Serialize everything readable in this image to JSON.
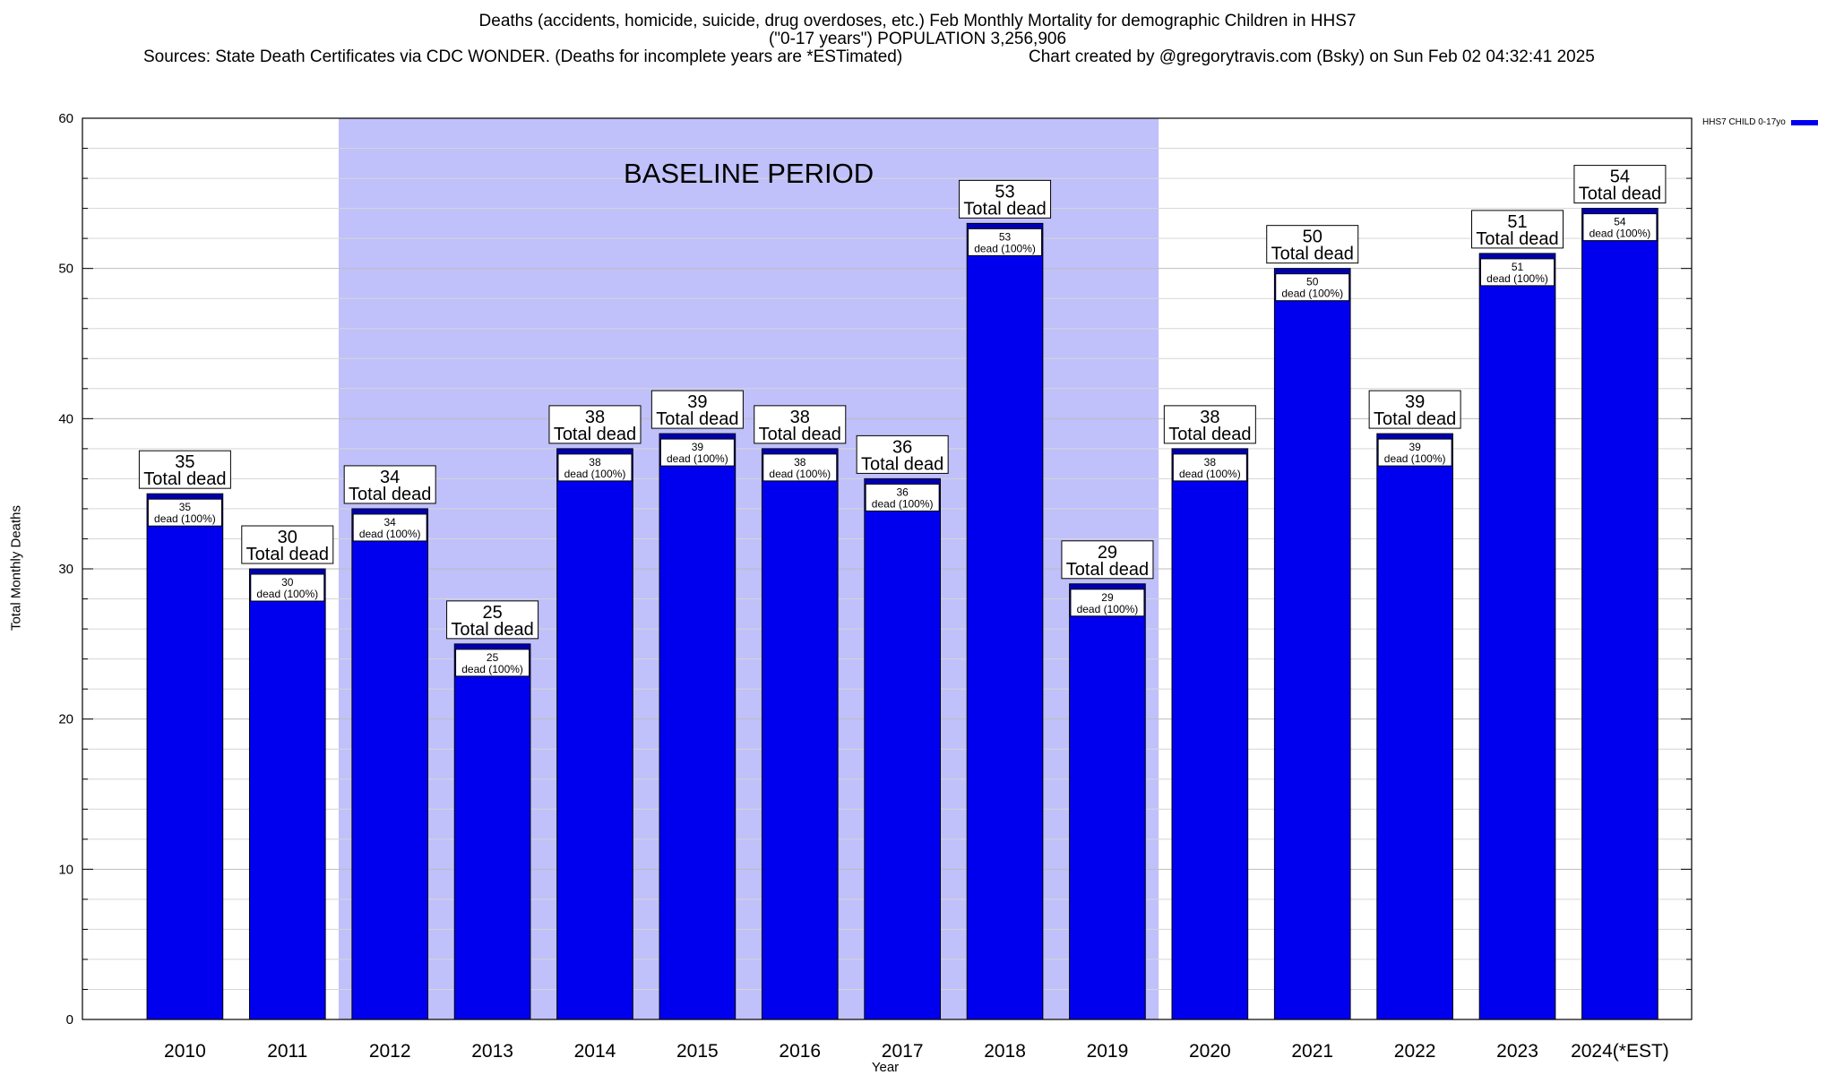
{
  "chart_data": {
    "type": "bar",
    "title": "Deaths (accidents, homicide, suicide, drug overdoses, etc.) Feb Monthly Mortality for demographic Children in HHS7",
    "subtitle": "(\"0-17 years\") POPULATION 3,256,906",
    "sources": "Sources: State Death Certificates via CDC WONDER. (Deaths for incomplete years are *ESTimated)",
    "credit": "Chart created by @gregorytravis.com (Bsky) on Sun Feb 02 04:32:41 2025",
    "xlabel": "Year",
    "ylabel": "Total Monthly Deaths",
    "ylim": [
      0,
      60
    ],
    "yticks": [
      "0",
      "10",
      "20",
      "30",
      "40",
      "50",
      "60"
    ],
    "categories": [
      "2010",
      "2011",
      "2012",
      "2013",
      "2014",
      "2015",
      "2016",
      "2017",
      "2018",
      "2019",
      "2020",
      "2021",
      "2022",
      "2023",
      "2024(*EST)"
    ],
    "series": [
      {
        "name": "HHS7 CHILD 0-17yo",
        "values": [
          35,
          30,
          34,
          25,
          38,
          39,
          38,
          36,
          53,
          29,
          38,
          50,
          39,
          51,
          54
        ]
      }
    ],
    "value_labels": [
      "35",
      "30",
      "34",
      "25",
      "38",
      "39",
      "38",
      "36",
      "53",
      "29",
      "38",
      "50",
      "39",
      "51",
      "54"
    ],
    "top_label_suffix": "Total dead",
    "inner_label_suffix": "dead (100%)",
    "baseline": {
      "label": "BASELINE PERIOD",
      "start": "2012",
      "end": "2019",
      "color": "#c0c0fa"
    },
    "bar_color": "#0000ee",
    "grid": true,
    "legend_position": "top-right"
  }
}
